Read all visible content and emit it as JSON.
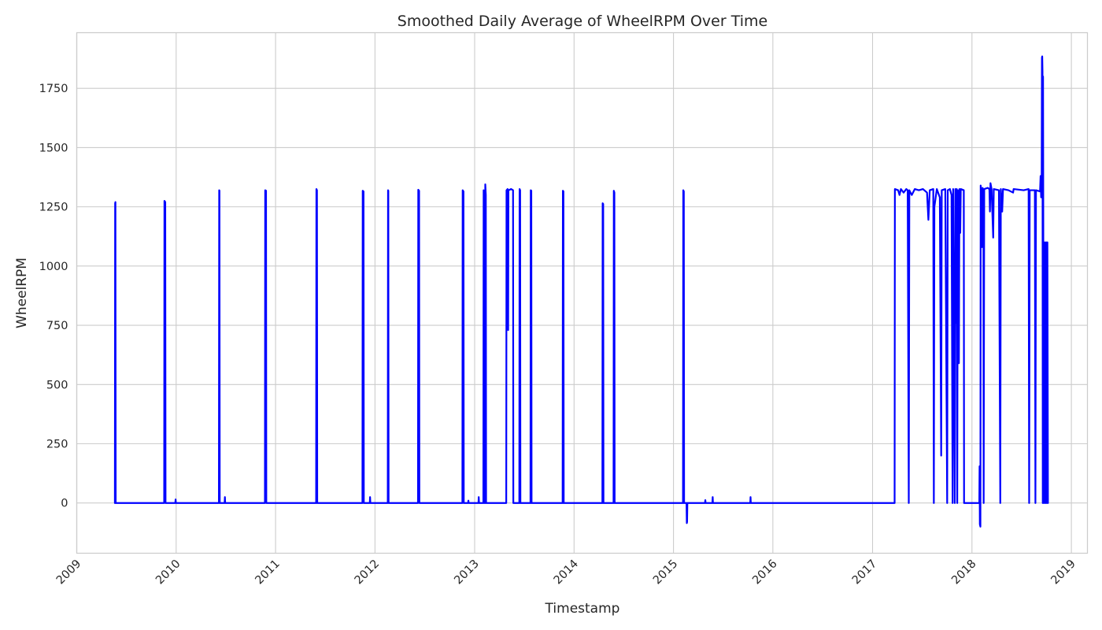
{
  "chart_data": {
    "type": "line",
    "title": "Smoothed Daily Average of WheelRPM Over Time",
    "xlabel": "Timestamp",
    "ylabel": "WheelRPM",
    "x_axis_type": "date",
    "xlim": [
      "2009-01-01",
      "2019-03-01"
    ],
    "ylim": [
      -212,
      1985
    ],
    "x_ticks": [
      "2009",
      "2010",
      "2011",
      "2012",
      "2013",
      "2014",
      "2015",
      "2016",
      "2017",
      "2018",
      "2019"
    ],
    "y_ticks": [
      0,
      250,
      500,
      750,
      1000,
      1250,
      1500,
      1750
    ],
    "grid": true,
    "legend": "none",
    "colors": {
      "line": "#0000ff",
      "grid": "#cccccc",
      "text": "#262626",
      "background": "#ffffff"
    },
    "series": [
      {
        "points": [
          [
            "2009-05-21",
            0
          ],
          [
            "2009-05-22",
            1265
          ],
          [
            "2009-05-23",
            1270
          ],
          [
            "2009-05-24",
            0
          ],
          [
            "2009-11-18",
            0
          ],
          [
            "2009-11-19",
            1275
          ],
          [
            "2009-11-22",
            1270
          ],
          [
            "2009-11-23",
            0
          ],
          [
            "2009-12-29",
            0
          ],
          [
            "2009-12-30",
            15
          ],
          [
            "2009-12-31",
            0
          ],
          [
            "2010-06-07",
            0
          ],
          [
            "2010-06-08",
            1320
          ],
          [
            "2010-06-09",
            1318
          ],
          [
            "2010-06-10",
            0
          ],
          [
            "2010-06-28",
            0
          ],
          [
            "2010-06-29",
            25
          ],
          [
            "2010-06-30",
            0
          ],
          [
            "2010-11-23",
            0
          ],
          [
            "2010-11-24",
            1320
          ],
          [
            "2010-11-27",
            1318
          ],
          [
            "2010-11-28",
            0
          ],
          [
            "2011-05-30",
            0
          ],
          [
            "2011-05-31",
            1325
          ],
          [
            "2011-06-02",
            1320
          ],
          [
            "2011-06-03",
            0
          ],
          [
            "2011-11-16",
            0
          ],
          [
            "2011-11-17",
            1318
          ],
          [
            "2011-11-20",
            1315
          ],
          [
            "2011-11-21",
            0
          ],
          [
            "2011-12-13",
            0
          ],
          [
            "2011-12-14",
            25
          ],
          [
            "2011-12-15",
            0
          ],
          [
            "2012-02-17",
            0
          ],
          [
            "2012-02-18",
            1320
          ],
          [
            "2012-02-19",
            1318
          ],
          [
            "2012-02-20",
            0
          ],
          [
            "2012-06-07",
            0
          ],
          [
            "2012-06-08",
            1322
          ],
          [
            "2012-06-11",
            1318
          ],
          [
            "2012-06-12",
            0
          ],
          [
            "2012-11-17",
            0
          ],
          [
            "2012-11-18",
            1320
          ],
          [
            "2012-11-21",
            1315
          ],
          [
            "2012-11-22",
            0
          ],
          [
            "2012-12-08",
            0
          ],
          [
            "2012-12-09",
            10
          ],
          [
            "2012-12-10",
            0
          ],
          [
            "2013-01-15",
            0
          ],
          [
            "2013-01-16",
            25
          ],
          [
            "2013-01-17",
            0
          ],
          [
            "2013-02-02",
            0
          ],
          [
            "2013-02-03",
            1320
          ],
          [
            "2013-02-05",
            1300
          ],
          [
            "2013-02-06",
            0
          ],
          [
            "2013-02-08",
            0
          ],
          [
            "2013-02-09",
            1345
          ],
          [
            "2013-02-11",
            1300
          ],
          [
            "2013-02-12",
            0
          ],
          [
            "2013-04-27",
            0
          ],
          [
            "2013-04-28",
            1320
          ],
          [
            "2013-05-02",
            1325
          ],
          [
            "2013-05-04",
            730
          ],
          [
            "2013-05-05",
            1320
          ],
          [
            "2013-05-15",
            1325
          ],
          [
            "2013-05-22",
            1320
          ],
          [
            "2013-05-23",
            0
          ],
          [
            "2013-06-14",
            0
          ],
          [
            "2013-06-15",
            1325
          ],
          [
            "2013-06-17",
            1320
          ],
          [
            "2013-06-18",
            0
          ],
          [
            "2013-07-25",
            0
          ],
          [
            "2013-07-26",
            1320
          ],
          [
            "2013-07-28",
            1318
          ],
          [
            "2013-07-29",
            0
          ],
          [
            "2013-11-20",
            0
          ],
          [
            "2013-11-21",
            1318
          ],
          [
            "2013-11-23",
            1315
          ],
          [
            "2013-11-24",
            0
          ],
          [
            "2014-04-15",
            0
          ],
          [
            "2014-04-16",
            1265
          ],
          [
            "2014-04-18",
            1262
          ],
          [
            "2014-04-19",
            0
          ],
          [
            "2014-05-26",
            0
          ],
          [
            "2014-05-27",
            1318
          ],
          [
            "2014-05-29",
            1310
          ],
          [
            "2014-05-30",
            0
          ],
          [
            "2015-02-05",
            0
          ],
          [
            "2015-02-06",
            1320
          ],
          [
            "2015-02-08",
            1315
          ],
          [
            "2015-02-09",
            0
          ],
          [
            "2015-02-18",
            0
          ],
          [
            "2015-02-19",
            -85
          ],
          [
            "2015-02-20",
            -80
          ],
          [
            "2015-02-21",
            0
          ],
          [
            "2015-04-27",
            0
          ],
          [
            "2015-04-28",
            12
          ],
          [
            "2015-04-29",
            0
          ],
          [
            "2015-05-24",
            0
          ],
          [
            "2015-05-25",
            25
          ],
          [
            "2015-05-26",
            0
          ],
          [
            "2015-10-10",
            0
          ],
          [
            "2015-10-11",
            25
          ],
          [
            "2015-10-12",
            0
          ],
          [
            "2017-03-23",
            0
          ],
          [
            "2017-03-24",
            1325
          ],
          [
            "2017-04-05",
            1320
          ],
          [
            "2017-04-10",
            1300
          ],
          [
            "2017-04-15",
            1325
          ],
          [
            "2017-04-25",
            1310
          ],
          [
            "2017-05-05",
            1325
          ],
          [
            "2017-05-10",
            1320
          ],
          [
            "2017-05-14",
            0
          ],
          [
            "2017-05-16",
            1320
          ],
          [
            "2017-05-25",
            1300
          ],
          [
            "2017-06-05",
            1325
          ],
          [
            "2017-06-20",
            1320
          ],
          [
            "2017-07-05",
            1325
          ],
          [
            "2017-07-20",
            1310
          ],
          [
            "2017-07-25",
            1195
          ],
          [
            "2017-07-30",
            1320
          ],
          [
            "2017-08-12",
            1325
          ],
          [
            "2017-08-14",
            0
          ],
          [
            "2017-08-16",
            1250
          ],
          [
            "2017-08-25",
            1325
          ],
          [
            "2017-09-05",
            1290
          ],
          [
            "2017-09-10",
            200
          ],
          [
            "2017-09-12",
            1320
          ],
          [
            "2017-09-25",
            1325
          ],
          [
            "2017-10-02",
            0
          ],
          [
            "2017-10-04",
            1320
          ],
          [
            "2017-10-12",
            1325
          ],
          [
            "2017-10-18",
            1300
          ],
          [
            "2017-10-22",
            0
          ],
          [
            "2017-10-24",
            1325
          ],
          [
            "2017-10-30",
            0
          ],
          [
            "2017-11-01",
            1325
          ],
          [
            "2017-11-04",
            760
          ],
          [
            "2017-11-06",
            1325
          ],
          [
            "2017-11-08",
            0
          ],
          [
            "2017-11-10",
            1320
          ],
          [
            "2017-11-14",
            590
          ],
          [
            "2017-11-16",
            1325
          ],
          [
            "2017-11-19",
            1140
          ],
          [
            "2017-11-21",
            1325
          ],
          [
            "2017-12-02",
            1320
          ],
          [
            "2017-12-03",
            0
          ],
          [
            "2018-01-28",
            0
          ],
          [
            "2018-01-29",
            155
          ],
          [
            "2018-01-30",
            -90
          ],
          [
            "2018-02-01",
            -100
          ],
          [
            "2018-02-02",
            1340
          ],
          [
            "2018-02-05",
            1300
          ],
          [
            "2018-02-07",
            1080
          ],
          [
            "2018-02-09",
            1330
          ],
          [
            "2018-02-12",
            1320
          ],
          [
            "2018-02-13",
            0
          ],
          [
            "2018-02-15",
            1325
          ],
          [
            "2018-02-28",
            1330
          ],
          [
            "2018-03-06",
            1325
          ],
          [
            "2018-03-08",
            1230
          ],
          [
            "2018-03-10",
            1350
          ],
          [
            "2018-03-14",
            1325
          ],
          [
            "2018-03-20",
            1120
          ],
          [
            "2018-03-22",
            1325
          ],
          [
            "2018-04-10",
            1320
          ],
          [
            "2018-04-15",
            0
          ],
          [
            "2018-04-17",
            1325
          ],
          [
            "2018-04-22",
            1230
          ],
          [
            "2018-04-25",
            1325
          ],
          [
            "2018-05-15",
            1320
          ],
          [
            "2018-06-01",
            1310
          ],
          [
            "2018-06-03",
            1325
          ],
          [
            "2018-07-10",
            1320
          ],
          [
            "2018-07-28",
            1325
          ],
          [
            "2018-07-30",
            0
          ],
          [
            "2018-08-01",
            1320
          ],
          [
            "2018-08-20",
            1320
          ],
          [
            "2018-08-22",
            0
          ],
          [
            "2018-08-24",
            1320
          ],
          [
            "2018-09-08",
            1315
          ],
          [
            "2018-09-10",
            1380
          ],
          [
            "2018-09-12",
            1290
          ],
          [
            "2018-09-14",
            1375
          ],
          [
            "2018-09-15",
            1880
          ],
          [
            "2018-09-16",
            1885
          ],
          [
            "2018-09-17",
            1820
          ],
          [
            "2018-09-18",
            0
          ],
          [
            "2018-09-19",
            1800
          ],
          [
            "2018-09-20",
            1100
          ],
          [
            "2018-09-21",
            0
          ],
          [
            "2018-09-23",
            1100
          ],
          [
            "2018-09-25",
            0
          ],
          [
            "2018-09-27",
            1100
          ],
          [
            "2018-09-29",
            0
          ],
          [
            "2018-10-01",
            1100
          ],
          [
            "2018-10-03",
            0
          ],
          [
            "2018-10-05",
            1100
          ],
          [
            "2018-10-07",
            0
          ]
        ]
      }
    ]
  }
}
